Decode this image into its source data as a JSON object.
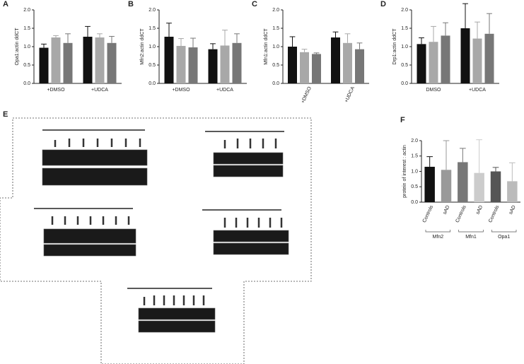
{
  "chart_data": [
    {
      "type": "bar",
      "panel": "A",
      "y_label": "Opa1:actin ddCT",
      "categories": [
        "+DMSO",
        "+UDCA"
      ],
      "series": [
        {
          "color": "#111111",
          "values": [
            0.97,
            1.27
          ],
          "errors": [
            0.1,
            0.28
          ]
        },
        {
          "color": "#a8a8a8",
          "values": [
            1.25,
            1.25
          ],
          "errors": [
            0.05,
            0.1
          ]
        },
        {
          "color": "#777777",
          "values": [
            1.1,
            1.1
          ],
          "errors": [
            0.25,
            0.18
          ]
        }
      ],
      "ylim": [
        0,
        2
      ],
      "yticks": [
        {
          "value": 0,
          "label": "0.0"
        },
        {
          "value": 0.5,
          "label": "0.5"
        },
        {
          "value": 1,
          "label": "1.0"
        },
        {
          "value": 1.5,
          "label": "1.5"
        },
        {
          "value": 2,
          "label": "2.0"
        }
      ]
    },
    {
      "type": "bar",
      "panel": "B",
      "y_label": "Mfn2:actin ddCT",
      "categories": [
        "+DMSO",
        "+UDCA"
      ],
      "series": [
        {
          "color": "#111111",
          "values": [
            1.27,
            0.93
          ],
          "errors": [
            0.37,
            0.15
          ]
        },
        {
          "color": "#a8a8a8",
          "values": [
            1.02,
            1.03
          ],
          "errors": [
            0.2,
            0.42
          ]
        },
        {
          "color": "#777777",
          "values": [
            0.98,
            1.1
          ],
          "errors": [
            0.25,
            0.25
          ]
        }
      ],
      "ylim": [
        0,
        2
      ],
      "yticks": [
        {
          "value": 0,
          "label": "0.0"
        },
        {
          "value": 0.5,
          "label": "0.5"
        },
        {
          "value": 1,
          "label": "1.0"
        },
        {
          "value": 1.5,
          "label": "1.5"
        },
        {
          "value": 2,
          "label": "2.0"
        }
      ]
    },
    {
      "type": "bar",
      "panel": "C",
      "y_label": "Mfn1:actin ddCT",
      "categories": [
        "+DMSO",
        "+UDCA"
      ],
      "rotate_labels": true,
      "series": [
        {
          "color": "#111111",
          "values": [
            1.0,
            1.25
          ],
          "errors": [
            0.27,
            0.15
          ]
        },
        {
          "color": "#a8a8a8",
          "values": [
            0.85,
            1.1
          ],
          "errors": [
            0.08,
            0.25
          ]
        },
        {
          "color": "#777777",
          "values": [
            0.8,
            0.93
          ],
          "errors": [
            0.03,
            0.17
          ]
        }
      ],
      "ylim": [
        0,
        2
      ],
      "yticks": [
        {
          "value": 0,
          "label": "0.0"
        },
        {
          "value": 0.5,
          "label": "0.5"
        },
        {
          "value": 1,
          "label": "1.0"
        },
        {
          "value": 1.5,
          "label": "1.5"
        },
        {
          "value": 2,
          "label": "2.0"
        }
      ]
    },
    {
      "type": "bar",
      "panel": "D",
      "y_label": "Drp1:actin ddCT",
      "categories": [
        "DMSO",
        "+UDCA"
      ],
      "series": [
        {
          "color": "#111111",
          "values": [
            1.07,
            1.5
          ],
          "errors": [
            0.17,
            0.67
          ]
        },
        {
          "color": "#a8a8a8",
          "values": [
            1.13,
            1.22
          ],
          "errors": [
            0.42,
            0.45
          ]
        },
        {
          "color": "#777777",
          "values": [
            1.3,
            1.35
          ],
          "errors": [
            0.35,
            0.55
          ]
        }
      ],
      "ylim": [
        0,
        2
      ],
      "yticks": [
        {
          "value": 0,
          "label": "0.0"
        },
        {
          "value": 0.5,
          "label": "0.5"
        },
        {
          "value": 1,
          "label": "1.0"
        },
        {
          "value": 1.5,
          "label": "1.5"
        },
        {
          "value": 2,
          "label": "2.0"
        }
      ]
    },
    {
      "type": "bar",
      "panel": "F",
      "y_label": "protein of interest : actin",
      "rotate_labels": true,
      "categories": [
        "Controls",
        "sAD",
        "Controls",
        "sAD",
        "Controls",
        "sAD"
      ],
      "groups": [
        "Mfn2",
        "Mfn1",
        "Opa1"
      ],
      "values": [
        1.15,
        1.05,
        1.3,
        0.95,
        1.0,
        0.68
      ],
      "errors": [
        0.33,
        0.95,
        0.45,
        1.08,
        0.13,
        0.6
      ],
      "colors": [
        "#111111",
        "#999999",
        "#777777",
        "#cccccc",
        "#555555",
        "#bbbbbb"
      ],
      "ylim": [
        0,
        2
      ],
      "yticks": [
        {
          "value": 0,
          "label": "0.0"
        },
        {
          "value": 0.5,
          "label": "0.5"
        },
        {
          "value": 1,
          "label": "1.0"
        },
        {
          "value": 1.5,
          "label": "1.5"
        },
        {
          "value": 2,
          "label": "2.0"
        }
      ]
    }
  ],
  "figure": {
    "blot_panel": "E"
  }
}
